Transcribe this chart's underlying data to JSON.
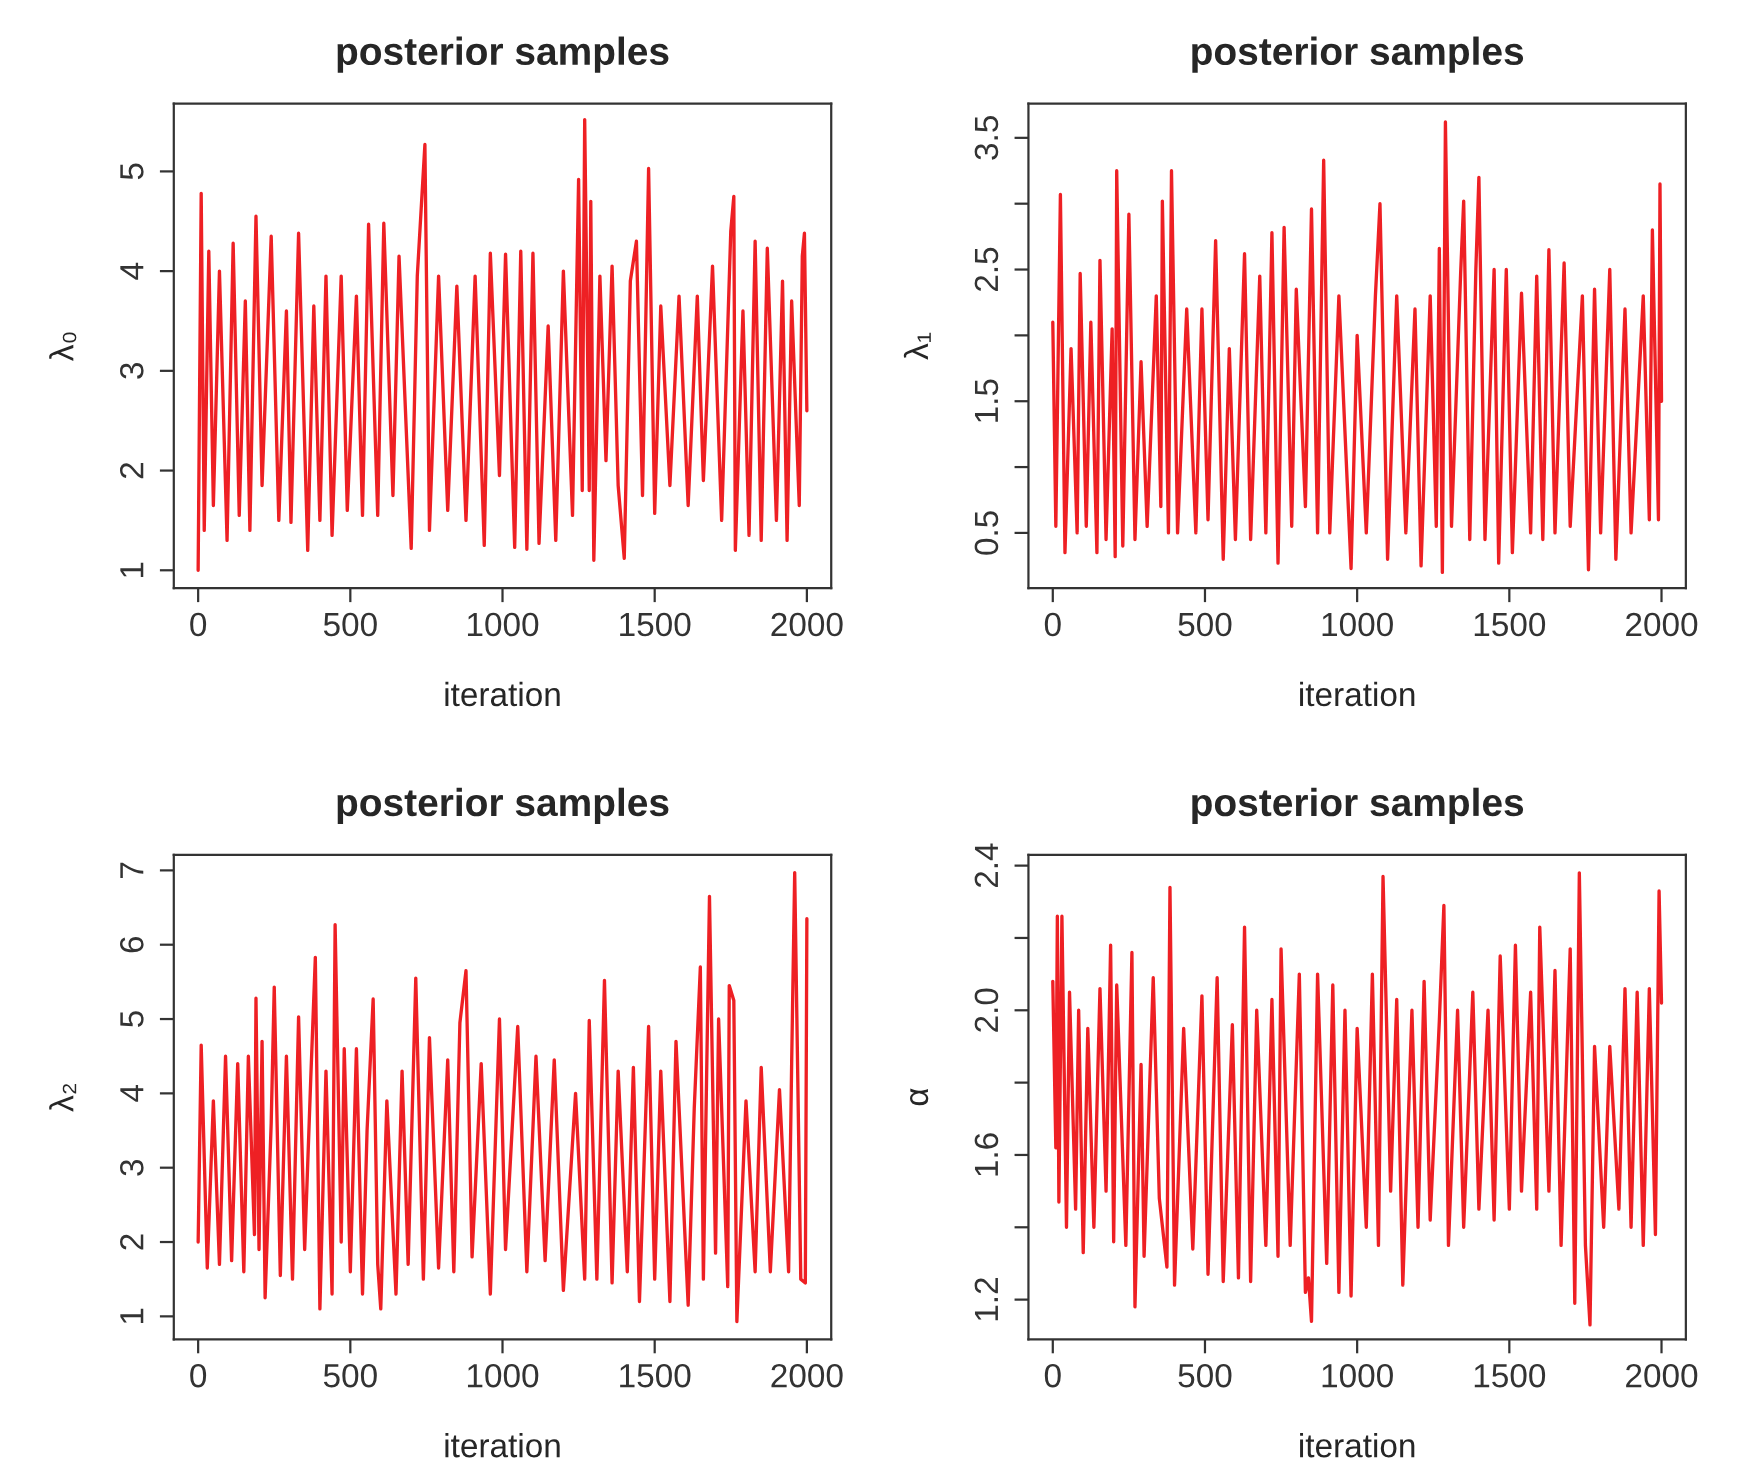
{
  "chart_data": [
    {
      "type": "line",
      "title": "posterior samples",
      "xlabel": "iteration",
      "ylabel": "λ₀",
      "xlim": [
        -80,
        2080
      ],
      "xticks": [
        0,
        500,
        1000,
        1500,
        2000
      ],
      "ylim": [
        0.82,
        5.68
      ],
      "yticks": [
        1,
        2,
        3,
        4,
        5
      ],
      "grid": false,
      "legend": false,
      "series": [
        {
          "color": "#ee2024",
          "x": [
            0,
            10,
            20,
            35,
            50,
            70,
            95,
            115,
            135,
            155,
            170,
            190,
            210,
            240,
            265,
            290,
            305,
            330,
            360,
            380,
            400,
            420,
            440,
            470,
            490,
            520,
            540,
            560,
            590,
            610,
            640,
            660,
            700,
            720,
            745,
            760,
            790,
            820,
            850,
            880,
            910,
            940,
            960,
            990,
            1010,
            1040,
            1060,
            1080,
            1100,
            1120,
            1150,
            1175,
            1200,
            1230,
            1250,
            1262,
            1270,
            1285,
            1290,
            1300,
            1320,
            1340,
            1360,
            1380,
            1400,
            1420,
            1440,
            1460,
            1480,
            1500,
            1520,
            1550,
            1580,
            1610,
            1640,
            1660,
            1690,
            1720,
            1750,
            1760,
            1765,
            1790,
            1810,
            1830,
            1850,
            1870,
            1900,
            1920,
            1935,
            1950,
            1975,
            1985,
            1992,
            2000
          ],
          "values": [
            1.0,
            4.78,
            1.4,
            4.2,
            1.65,
            4.0,
            1.3,
            4.28,
            1.55,
            3.7,
            1.4,
            4.55,
            1.85,
            4.35,
            1.5,
            3.6,
            1.48,
            4.38,
            1.2,
            3.65,
            1.5,
            3.95,
            1.35,
            3.95,
            1.6,
            3.75,
            1.55,
            4.47,
            1.55,
            4.48,
            1.75,
            4.15,
            1.22,
            3.95,
            5.27,
            1.4,
            3.95,
            1.6,
            3.85,
            1.5,
            3.95,
            1.25,
            4.18,
            1.95,
            4.17,
            1.23,
            4.2,
            1.21,
            4.18,
            1.27,
            3.45,
            1.3,
            4.0,
            1.55,
            4.92,
            1.8,
            5.52,
            1.8,
            4.7,
            1.1,
            3.95,
            2.1,
            4.05,
            1.85,
            1.12,
            3.9,
            4.3,
            1.75,
            5.03,
            1.57,
            3.65,
            1.85,
            3.75,
            1.65,
            3.75,
            1.9,
            4.05,
            1.5,
            4.4,
            4.75,
            1.2,
            3.6,
            1.35,
            4.3,
            1.3,
            4.23,
            1.5,
            3.9,
            1.3,
            3.7,
            1.65,
            4.15,
            4.38,
            2.6
          ]
        }
      ]
    },
    {
      "type": "line",
      "title": "posterior samples",
      "xlabel": "iteration",
      "ylabel": "λ₁",
      "xlim": [
        -80,
        2080
      ],
      "xticks": [
        0,
        500,
        1000,
        1500,
        2000
      ],
      "ylim": [
        0.08,
        3.76
      ],
      "yticks": [
        0.5,
        {
          "value": 1.0,
          "label": null
        },
        1.5,
        {
          "value": 2.0,
          "label": null
        },
        2.5,
        {
          "value": 3.0,
          "label": null
        },
        3.5
      ],
      "grid": false,
      "legend": false,
      "series": [
        {
          "color": "#ee2024",
          "x": [
            0,
            10,
            25,
            40,
            60,
            80,
            90,
            110,
            125,
            145,
            155,
            175,
            195,
            205,
            210,
            230,
            250,
            270,
            290,
            310,
            340,
            355,
            360,
            380,
            390,
            410,
            440,
            470,
            490,
            510,
            535,
            560,
            580,
            600,
            630,
            650,
            680,
            700,
            720,
            740,
            760,
            785,
            800,
            830,
            850,
            870,
            890,
            910,
            940,
            980,
            1000,
            1030,
            1060,
            1075,
            1100,
            1130,
            1160,
            1190,
            1210,
            1240,
            1260,
            1270,
            1280,
            1290,
            1310,
            1340,
            1350,
            1370,
            1390,
            1400,
            1420,
            1450,
            1465,
            1490,
            1510,
            1540,
            1570,
            1590,
            1610,
            1630,
            1650,
            1680,
            1700,
            1740,
            1760,
            1780,
            1800,
            1830,
            1850,
            1880,
            1900,
            1940,
            1960,
            1970,
            1990,
            1995,
            2000
          ],
          "values": [
            2.1,
            0.55,
            3.07,
            0.35,
            1.9,
            0.5,
            2.47,
            0.55,
            2.1,
            0.35,
            2.57,
            0.45,
            2.05,
            0.32,
            3.25,
            0.4,
            2.92,
            0.45,
            1.8,
            0.55,
            2.3,
            0.7,
            3.02,
            0.5,
            3.25,
            0.5,
            2.2,
            0.5,
            2.2,
            0.6,
            2.72,
            0.3,
            1.9,
            0.45,
            2.62,
            0.45,
            2.45,
            0.5,
            2.78,
            0.27,
            2.82,
            0.55,
            2.35,
            0.7,
            2.96,
            0.5,
            3.33,
            0.5,
            2.3,
            0.23,
            2.0,
            0.5,
            2.3,
            3.0,
            0.3,
            2.3,
            0.5,
            2.2,
            0.25,
            2.3,
            0.55,
            2.66,
            0.2,
            3.62,
            0.55,
            2.47,
            3.02,
            0.45,
            2.5,
            3.2,
            0.45,
            2.5,
            0.27,
            2.5,
            0.35,
            2.32,
            0.5,
            2.45,
            0.45,
            2.65,
            0.5,
            2.55,
            0.55,
            2.3,
            0.22,
            2.35,
            0.5,
            2.5,
            0.3,
            2.2,
            0.5,
            2.3,
            0.6,
            2.8,
            0.6,
            3.15,
            1.5
          ]
        }
      ]
    },
    {
      "type": "line",
      "title": "posterior samples",
      "xlabel": "iteration",
      "ylabel": "λ₂",
      "xlim": [
        -80,
        2080
      ],
      "xticks": [
        0,
        500,
        1000,
        1500,
        2000
      ],
      "ylim": [
        0.69,
        7.21
      ],
      "yticks": [
        1,
        2,
        3,
        4,
        5,
        6,
        7
      ],
      "grid": false,
      "legend": false,
      "series": [
        {
          "color": "#ee2024",
          "x": [
            0,
            10,
            30,
            50,
            70,
            90,
            110,
            130,
            150,
            165,
            185,
            190,
            200,
            210,
            220,
            240,
            250,
            270,
            290,
            310,
            330,
            350,
            370,
            385,
            400,
            420,
            440,
            450,
            470,
            480,
            500,
            520,
            540,
            555,
            575,
            590,
            600,
            620,
            650,
            670,
            690,
            715,
            740,
            760,
            790,
            820,
            840,
            860,
            880,
            900,
            930,
            960,
            990,
            1010,
            1050,
            1080,
            1110,
            1140,
            1170,
            1200,
            1240,
            1270,
            1285,
            1310,
            1335,
            1360,
            1380,
            1410,
            1430,
            1450,
            1480,
            1500,
            1520,
            1550,
            1570,
            1610,
            1630,
            1650,
            1660,
            1680,
            1700,
            1710,
            1740,
            1745,
            1760,
            1770,
            1800,
            1830,
            1850,
            1880,
            1910,
            1940,
            1950,
            1960,
            1980,
            1995,
            2000
          ],
          "values": [
            2.0,
            4.65,
            1.65,
            3.9,
            1.7,
            4.5,
            1.75,
            4.4,
            1.6,
            4.5,
            2.1,
            5.28,
            1.9,
            4.7,
            1.25,
            3.6,
            5.43,
            1.55,
            4.5,
            1.5,
            5.03,
            1.9,
            4.2,
            5.83,
            1.1,
            4.3,
            1.3,
            6.27,
            2.0,
            4.6,
            1.6,
            4.6,
            1.3,
            3.5,
            5.27,
            1.7,
            1.1,
            3.9,
            1.3,
            4.3,
            1.7,
            5.55,
            1.5,
            4.75,
            1.65,
            4.45,
            1.6,
            4.95,
            5.65,
            1.8,
            4.4,
            1.3,
            5.0,
            1.9,
            4.9,
            1.6,
            4.5,
            1.75,
            4.45,
            1.35,
            4.0,
            1.5,
            4.98,
            1.5,
            5.52,
            1.45,
            4.3,
            1.6,
            4.35,
            1.2,
            4.9,
            1.5,
            4.3,
            1.2,
            4.7,
            1.15,
            3.8,
            5.7,
            1.5,
            6.65,
            1.85,
            5.0,
            1.4,
            5.45,
            5.25,
            0.93,
            3.9,
            1.6,
            4.35,
            1.6,
            4.05,
            1.6,
            4.4,
            6.97,
            1.5,
            1.45,
            6.35
          ]
        }
      ]
    },
    {
      "type": "line",
      "title": "posterior samples",
      "xlabel": "iteration",
      "ylabel": "α",
      "xlim": [
        -80,
        2080
      ],
      "xticks": [
        0,
        500,
        1000,
        1500,
        2000
      ],
      "ylim": [
        1.09,
        2.43
      ],
      "yticks": [
        1.2,
        {
          "value": 1.4,
          "label": null
        },
        1.6,
        {
          "value": 1.8,
          "label": null
        },
        {
          "value": 2.0,
          "label": "2.0"
        },
        {
          "value": 2.2,
          "label": null
        },
        2.4
      ],
      "grid": false,
      "legend": false,
      "series": [
        {
          "color": "#ee2024",
          "x": [
            0,
            10,
            15,
            20,
            30,
            45,
            55,
            75,
            85,
            100,
            115,
            135,
            155,
            175,
            190,
            200,
            210,
            240,
            260,
            270,
            290,
            300,
            330,
            350,
            375,
            385,
            400,
            430,
            460,
            490,
            510,
            540,
            560,
            590,
            610,
            630,
            650,
            670,
            700,
            720,
            740,
            750,
            780,
            810,
            830,
            840,
            850,
            870,
            900,
            920,
            940,
            960,
            980,
            1000,
            1030,
            1050,
            1070,
            1085,
            1110,
            1130,
            1150,
            1180,
            1200,
            1220,
            1240,
            1270,
            1285,
            1300,
            1330,
            1350,
            1380,
            1400,
            1430,
            1450,
            1470,
            1500,
            1520,
            1540,
            1570,
            1590,
            1600,
            1630,
            1650,
            1670,
            1700,
            1715,
            1730,
            1750,
            1765,
            1780,
            1810,
            1830,
            1860,
            1880,
            1900,
            1920,
            1940,
            1960,
            1980,
            1992,
            2000
          ],
          "values": [
            2.08,
            1.62,
            2.26,
            1.47,
            2.26,
            1.4,
            2.05,
            1.45,
            2.0,
            1.33,
            1.95,
            1.4,
            2.06,
            1.5,
            2.18,
            1.36,
            2.07,
            1.35,
            2.16,
            1.18,
            1.85,
            1.32,
            2.09,
            1.48,
            1.29,
            2.34,
            1.24,
            1.95,
            1.34,
            2.04,
            1.27,
            2.09,
            1.25,
            1.96,
            1.26,
            2.23,
            1.25,
            2.0,
            1.35,
            2.03,
            1.32,
            2.17,
            1.35,
            2.1,
            1.22,
            1.26,
            1.14,
            2.1,
            1.3,
            2.07,
            1.22,
            2.0,
            1.21,
            1.95,
            1.4,
            2.1,
            1.35,
            2.37,
            1.5,
            2.03,
            1.24,
            2.0,
            1.4,
            2.08,
            1.42,
            1.97,
            2.29,
            1.35,
            2.0,
            1.4,
            2.05,
            1.45,
            2.0,
            1.42,
            2.15,
            1.45,
            2.18,
            1.5,
            2.05,
            1.45,
            2.23,
            1.5,
            2.11,
            1.35,
            2.17,
            1.19,
            2.38,
            1.35,
            1.13,
            1.9,
            1.4,
            1.9,
            1.45,
            2.06,
            1.4,
            2.05,
            1.35,
            2.06,
            1.38,
            2.33,
            2.02
          ]
        }
      ]
    }
  ]
}
